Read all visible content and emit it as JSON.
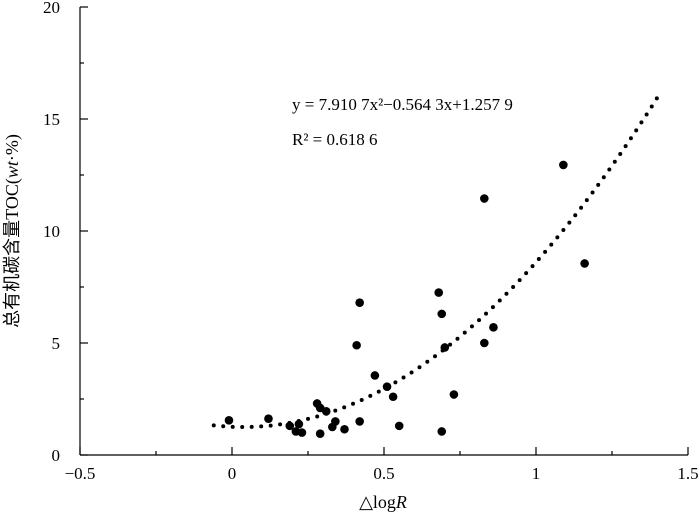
{
  "chart_data": {
    "type": "scatter",
    "xlabel_main": "△log",
    "xlabel_var": "R",
    "ylabel_prefix": "总有机碳含量TOC(",
    "ylabel_var": "wt",
    "ylabel_suffix": "·%)",
    "xlim": [
      -0.5,
      1.5
    ],
    "ylim": [
      0,
      20
    ],
    "xticks": [
      -0.5,
      0,
      0.5,
      1,
      1.5
    ],
    "xtick_labels": [
      "−0.5",
      "0",
      "0.5",
      "1",
      "1.5"
    ],
    "yticks": [
      0,
      5,
      10,
      15,
      20
    ],
    "ytick_labels": [
      "0",
      "5",
      "10",
      "15",
      "20"
    ],
    "grid": false,
    "equation_text": "y = 7.910 7x²−0.564 3x+1.257 9",
    "r2_text": "R² = 0.618 6",
    "trendline": {
      "a": 7.9107,
      "b": -0.5643,
      "c": 1.2579,
      "x_range": [
        -0.06,
        1.4
      ]
    },
    "points": [
      {
        "x": -0.01,
        "y": 1.55
      },
      {
        "x": 0.12,
        "y": 1.62
      },
      {
        "x": 0.19,
        "y": 1.3
      },
      {
        "x": 0.21,
        "y": 1.05
      },
      {
        "x": 0.22,
        "y": 1.38
      },
      {
        "x": 0.23,
        "y": 1.0
      },
      {
        "x": 0.28,
        "y": 2.3
      },
      {
        "x": 0.29,
        "y": 2.1
      },
      {
        "x": 0.29,
        "y": 0.95
      },
      {
        "x": 0.31,
        "y": 1.95
      },
      {
        "x": 0.33,
        "y": 1.25
      },
      {
        "x": 0.34,
        "y": 1.5
      },
      {
        "x": 0.37,
        "y": 1.15
      },
      {
        "x": 0.41,
        "y": 4.9
      },
      {
        "x": 0.42,
        "y": 6.8
      },
      {
        "x": 0.42,
        "y": 1.5
      },
      {
        "x": 0.47,
        "y": 3.55
      },
      {
        "x": 0.51,
        "y": 3.05
      },
      {
        "x": 0.53,
        "y": 2.6
      },
      {
        "x": 0.55,
        "y": 1.3
      },
      {
        "x": 0.68,
        "y": 7.25
      },
      {
        "x": 0.69,
        "y": 6.3
      },
      {
        "x": 0.69,
        "y": 1.05
      },
      {
        "x": 0.7,
        "y": 4.8
      },
      {
        "x": 0.73,
        "y": 2.7
      },
      {
        "x": 0.83,
        "y": 11.45
      },
      {
        "x": 0.83,
        "y": 5.0
      },
      {
        "x": 0.86,
        "y": 5.7
      },
      {
        "x": 1.09,
        "y": 12.95
      },
      {
        "x": 1.16,
        "y": 8.55
      }
    ]
  }
}
